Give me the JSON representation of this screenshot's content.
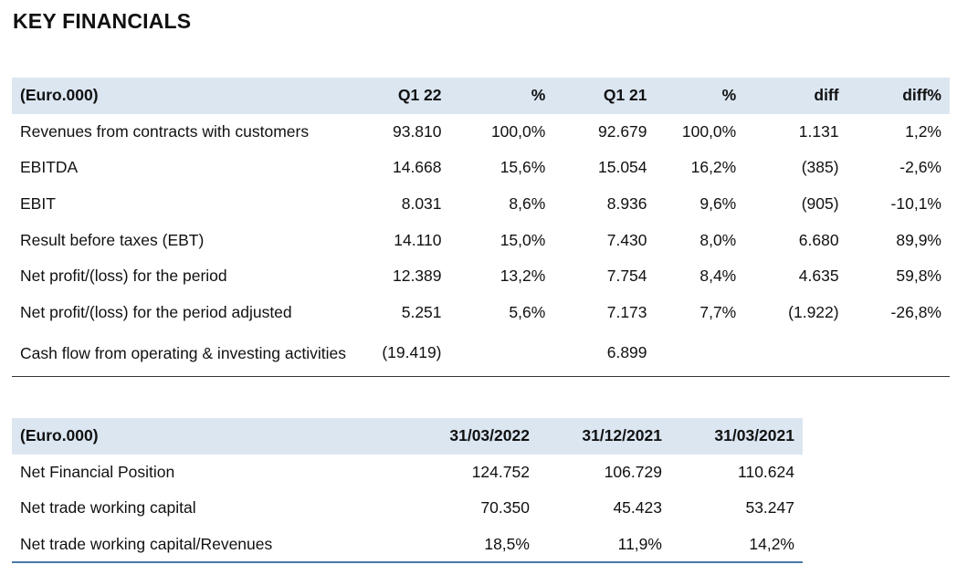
{
  "title": "KEY FINANCIALS",
  "table1": {
    "headers": [
      "(Euro.000)",
      "Q1 22",
      "%",
      "Q1 21",
      "%",
      "diff",
      "diff%"
    ],
    "rows": [
      [
        "Revenues from contracts with customers",
        "93.810",
        "100,0%",
        "92.679",
        "100,0%",
        "1.131",
        "1,2%"
      ],
      [
        "EBITDA",
        "14.668",
        "15,6%",
        "15.054",
        "16,2%",
        "(385)",
        "-2,6%"
      ],
      [
        "EBIT",
        "8.031",
        "8,6%",
        "8.936",
        "9,6%",
        "(905)",
        "-10,1%"
      ],
      [
        "Result before taxes (EBT)",
        "14.110",
        "15,0%",
        "7.430",
        "8,0%",
        "6.680",
        "89,9%"
      ],
      [
        "Net profit/(loss) for the period",
        "12.389",
        "13,2%",
        "7.754",
        "8,4%",
        "4.635",
        "59,8%"
      ],
      [
        "Net profit/(loss) for the period adjusted",
        "5.251",
        "5,6%",
        "7.173",
        "7,7%",
        "(1.922)",
        "-26,8%"
      ],
      [
        "Cash flow from operating & investing activities",
        "(19.419)",
        "",
        "6.899",
        "",
        "",
        ""
      ]
    ]
  },
  "table2": {
    "headers": [
      "(Euro.000)",
      "31/03/2022",
      "31/12/2021",
      "31/03/2021"
    ],
    "rows": [
      [
        "Net Financial Position",
        "124.752",
        "106.729",
        "110.624"
      ],
      [
        "Net trade working capital",
        "70.350",
        "45.423",
        "53.247"
      ],
      [
        "Net trade working capital/Revenues",
        "18,5%",
        "11,9%",
        "14,2%"
      ]
    ]
  }
}
